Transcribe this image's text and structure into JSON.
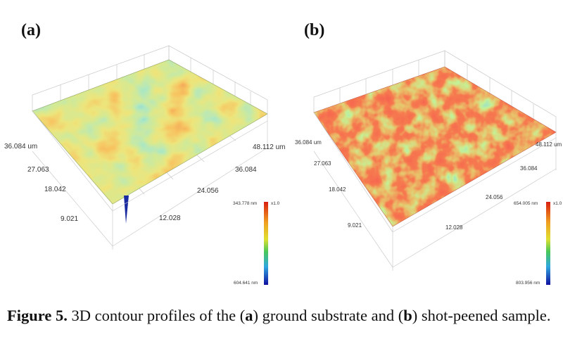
{
  "panels": [
    {
      "label": "(a)",
      "x_ticks": [
        "12.028",
        "24.056",
        "36.084",
        "48.112 um"
      ],
      "y_ticks": [
        "9.021",
        "18.042",
        "27.063",
        "36.084 um"
      ],
      "colorbar": {
        "top": "343.778 nm",
        "bottom": "604.641 nm",
        "multiplier": "x1.0"
      }
    },
    {
      "label": "(b)",
      "x_ticks": [
        "12.028",
        "24.056",
        "36.084",
        "48.112 um"
      ],
      "y_ticks": [
        "9.021",
        "18.042",
        "27.063",
        "36.084 um"
      ],
      "colorbar": {
        "top": "654.005 nm",
        "bottom": "803.956 nm",
        "multiplier": "x1.0"
      }
    }
  ],
  "caption": {
    "figure": "Figure 5.",
    "t1": " 3D contour profiles of the (",
    "a": "a",
    "t2": ") ground substrate and (",
    "b": "b",
    "t3": ") shot-peened sample."
  }
}
